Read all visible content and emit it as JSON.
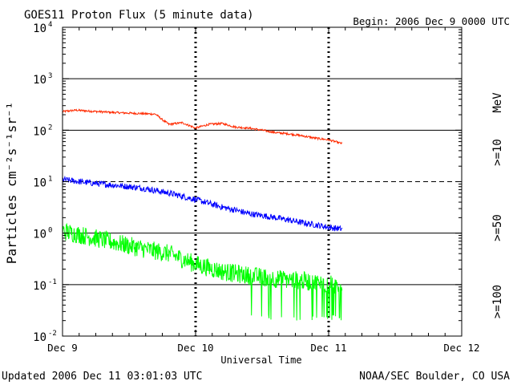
{
  "chart_data": {
    "type": "line",
    "title": "GOES11 Proton Flux (5 minute data)",
    "begin_label": "Begin: 2006 Dec 9 0000 UTC",
    "xlabel": "Universal Time",
    "ylabel": "Particles cm⁻²s⁻¹sr⁻¹",
    "y_scale": "log",
    "ylim": [
      0.01,
      10000
    ],
    "xlim_days": [
      0,
      3
    ],
    "x_ticks": [
      {
        "day": 0,
        "label": "Dec 9"
      },
      {
        "day": 1,
        "label": "Dec 10"
      },
      {
        "day": 2,
        "label": "Dec 11"
      },
      {
        "day": 3,
        "label": "Dec 12"
      }
    ],
    "y_ticks": [
      {
        "value": 0.01,
        "base": "10",
        "exp": "-2"
      },
      {
        "value": 0.1,
        "base": "10",
        "exp": "-1"
      },
      {
        "value": 1,
        "base": "10",
        "exp": "0"
      },
      {
        "value": 10,
        "base": "10",
        "exp": "1"
      },
      {
        "value": 100,
        "base": "10",
        "exp": "2"
      },
      {
        "value": 1000,
        "base": "10",
        "exp": "3"
      },
      {
        "value": 10000,
        "base": "10",
        "exp": "4"
      }
    ],
    "gridlines_y": [
      0.1,
      1,
      100,
      1000
    ],
    "dashed_gridline_y": 10,
    "series": [
      {
        "name": ">=10 MeV",
        "color": "#ff2a00",
        "x": [
          0,
          0.1,
          0.2,
          0.4,
          0.6,
          0.7,
          0.75,
          0.8,
          0.9,
          1.0,
          1.1,
          1.2,
          1.3,
          1.4,
          1.5,
          1.6,
          1.7,
          1.8,
          1.9,
          2.0,
          2.1
        ],
        "y": [
          230,
          245,
          235,
          220,
          210,
          205,
          160,
          130,
          140,
          110,
          130,
          135,
          115,
          110,
          100,
          90,
          85,
          78,
          70,
          65,
          55
        ],
        "noise_dex": 0.02
      },
      {
        "name": ">=50 MeV",
        "color": "#0000ff",
        "x": [
          0,
          0.2,
          0.4,
          0.6,
          0.8,
          1.0,
          1.1,
          1.2,
          1.3,
          1.4,
          1.5,
          1.6,
          1.7,
          1.8,
          1.9,
          2.0,
          2.1
        ],
        "y": [
          11,
          9.5,
          8.5,
          7.5,
          6.0,
          4.5,
          3.8,
          3.2,
          2.8,
          2.4,
          2.2,
          2.0,
          1.8,
          1.6,
          1.45,
          1.3,
          1.2
        ],
        "noise_dex": 0.06
      },
      {
        "name": ">=100 MeV",
        "color": "#00ff00",
        "x": [
          0,
          0.2,
          0.4,
          0.6,
          0.8,
          1.0,
          1.2,
          1.4,
          1.6,
          1.8,
          2.0,
          2.1
        ],
        "y": [
          1.1,
          0.85,
          0.65,
          0.5,
          0.4,
          0.25,
          0.18,
          0.15,
          0.13,
          0.12,
          0.1,
          0.1
        ],
        "noise_dex": 0.18,
        "floor": 0.02
      }
    ],
    "right_labels": [
      {
        "text": ">=10",
        "color": "#ff2a00"
      },
      {
        "text": "MeV",
        "color": "#000000"
      },
      {
        "text": ">=50",
        "color": "#0000ff"
      },
      {
        "text": ">=100",
        "color": "#00ff00"
      }
    ]
  },
  "footer": {
    "updated": "Updated 2006 Dec 11 03:01:03 UTC",
    "credit": "NOAA/SEC Boulder, CO USA"
  }
}
